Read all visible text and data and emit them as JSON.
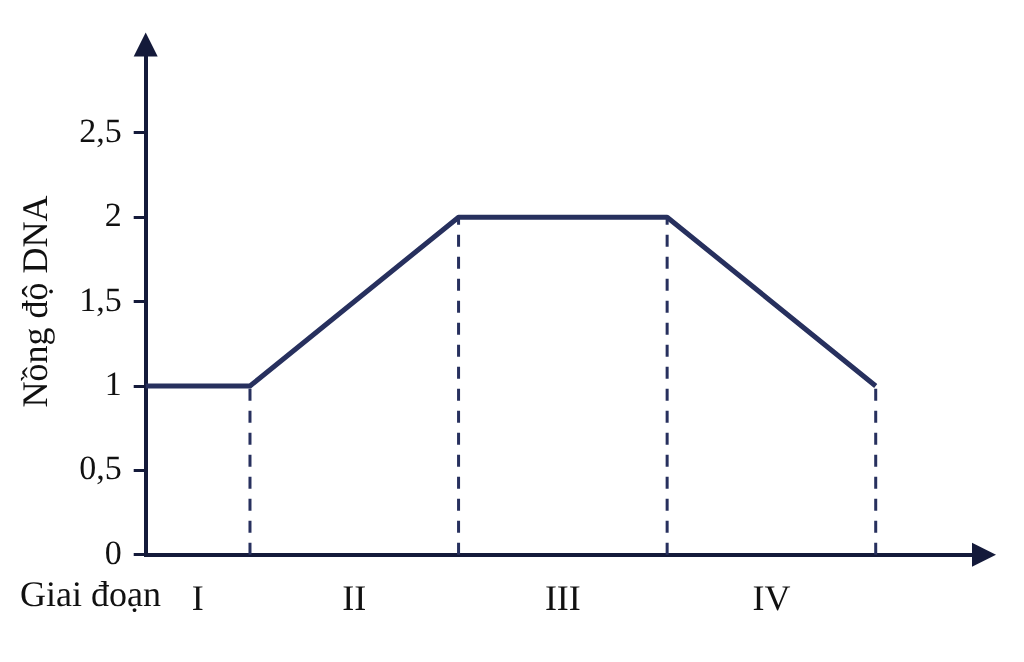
{
  "chart_data": {
    "type": "line",
    "xlabel": "Giai đoạn",
    "ylabel": "Nồng độ DNA",
    "categories": [
      null,
      "I",
      null,
      null,
      "II",
      null,
      null,
      null,
      "III",
      null,
      null,
      null,
      "IV",
      null,
      null,
      null,
      null
    ],
    "values": [
      1,
      null,
      1,
      null,
      null,
      null,
      2,
      null,
      null,
      null,
      2,
      null,
      null,
      null,
      1,
      null,
      null
    ],
    "errors": [
      null,
      null,
      [
        0,
        1
      ],
      null,
      null,
      null,
      [
        0,
        2
      ],
      null,
      null,
      null,
      [
        0,
        2
      ],
      null,
      null,
      null,
      [
        0,
        1
      ],
      null,
      null
    ],
    "color": "#27305e",
    "ylim": [
      0,
      3
    ],
    "yticks": [
      0,
      {
        "value": 0.5,
        "label": "0,5"
      },
      1,
      {
        "value": 1.5,
        "label": "1,5"
      },
      2,
      {
        "value": 2.5,
        "label": "2,5"
      }
    ],
    "marker": "none",
    "line_style": "solid",
    "grid": false,
    "legend": false
  }
}
